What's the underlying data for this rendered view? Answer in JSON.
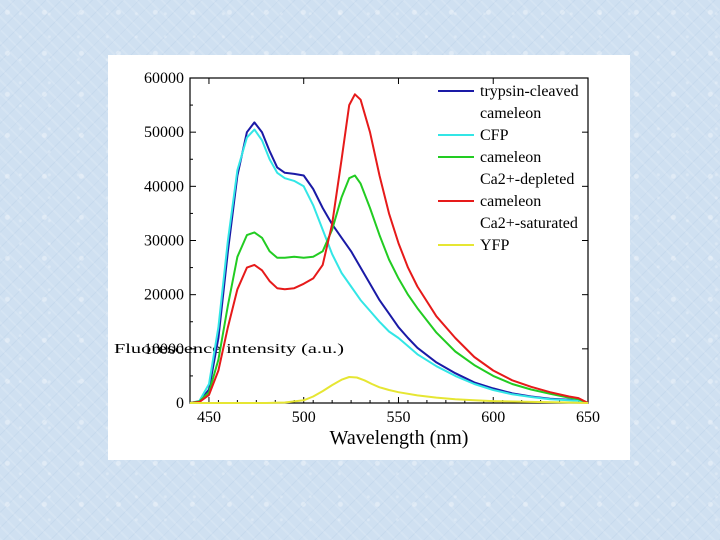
{
  "chart_data": {
    "type": "line",
    "title": "",
    "xlabel": "Wavelength (nm)",
    "ylabel": "Fluorescence intensity (a.u.)",
    "xlim": [
      440,
      650
    ],
    "ylim": [
      0,
      60000
    ],
    "x_ticks": [
      450,
      500,
      550,
      600,
      650
    ],
    "y_ticks": [
      0,
      10000,
      20000,
      30000,
      40000,
      50000,
      60000
    ],
    "grid": false,
    "legend_position": "top-right",
    "legend": [
      {
        "series": 0,
        "lines": [
          "trypsin-cleaved",
          "cameleon"
        ]
      },
      {
        "series": 1,
        "lines": [
          "CFP"
        ]
      },
      {
        "series": 2,
        "lines": [
          "cameleon",
          "Ca2+-depleted"
        ]
      },
      {
        "series": 3,
        "lines": [
          "cameleon",
          "Ca2+-saturated"
        ]
      },
      {
        "series": 4,
        "lines": [
          "YFP"
        ]
      }
    ],
    "series": [
      {
        "name": "trypsin-cleaved cameleon",
        "color": "#1a1aa6",
        "points": [
          [
            440,
            0
          ],
          [
            445,
            300
          ],
          [
            450,
            2500
          ],
          [
            455,
            12000
          ],
          [
            460,
            28000
          ],
          [
            465,
            42000
          ],
          [
            470,
            50000
          ],
          [
            474,
            51800
          ],
          [
            478,
            50000
          ],
          [
            482,
            46500
          ],
          [
            486,
            43500
          ],
          [
            490,
            42500
          ],
          [
            495,
            42300
          ],
          [
            500,
            42000
          ],
          [
            505,
            39500
          ],
          [
            510,
            36000
          ],
          [
            515,
            33000
          ],
          [
            520,
            30500
          ],
          [
            525,
            28000
          ],
          [
            530,
            25000
          ],
          [
            535,
            22000
          ],
          [
            540,
            19000
          ],
          [
            545,
            16500
          ],
          [
            550,
            14000
          ],
          [
            555,
            12000
          ],
          [
            560,
            10200
          ],
          [
            570,
            7500
          ],
          [
            580,
            5500
          ],
          [
            590,
            3800
          ],
          [
            600,
            2700
          ],
          [
            610,
            1800
          ],
          [
            620,
            1200
          ],
          [
            630,
            800
          ],
          [
            640,
            600
          ],
          [
            645,
            500
          ],
          [
            650,
            0
          ]
        ]
      },
      {
        "name": "CFP",
        "color": "#33e6e6",
        "points": [
          [
            440,
            0
          ],
          [
            445,
            400
          ],
          [
            450,
            3500
          ],
          [
            455,
            14000
          ],
          [
            460,
            30000
          ],
          [
            465,
            43000
          ],
          [
            470,
            49000
          ],
          [
            474,
            50500
          ],
          [
            478,
            48500
          ],
          [
            482,
            45000
          ],
          [
            486,
            42500
          ],
          [
            490,
            41500
          ],
          [
            495,
            41000
          ],
          [
            500,
            40000
          ],
          [
            505,
            36500
          ],
          [
            510,
            32000
          ],
          [
            515,
            27500
          ],
          [
            520,
            24000
          ],
          [
            525,
            21500
          ],
          [
            530,
            19000
          ],
          [
            535,
            17000
          ],
          [
            540,
            15000
          ],
          [
            545,
            13200
          ],
          [
            550,
            12000
          ],
          [
            555,
            10500
          ],
          [
            560,
            9000
          ],
          [
            570,
            6800
          ],
          [
            580,
            5000
          ],
          [
            590,
            3500
          ],
          [
            600,
            2400
          ],
          [
            610,
            1600
          ],
          [
            620,
            1100
          ],
          [
            630,
            700
          ],
          [
            640,
            500
          ],
          [
            645,
            400
          ],
          [
            650,
            0
          ]
        ]
      },
      {
        "name": "cameleon Ca2+-depleted",
        "color": "#22cc22",
        "points": [
          [
            440,
            0
          ],
          [
            445,
            300
          ],
          [
            450,
            2000
          ],
          [
            455,
            8000
          ],
          [
            460,
            18000
          ],
          [
            465,
            27000
          ],
          [
            470,
            31000
          ],
          [
            474,
            31500
          ],
          [
            478,
            30500
          ],
          [
            482,
            28000
          ],
          [
            486,
            26800
          ],
          [
            490,
            26800
          ],
          [
            495,
            27000
          ],
          [
            500,
            26800
          ],
          [
            505,
            27000
          ],
          [
            510,
            28000
          ],
          [
            515,
            32000
          ],
          [
            520,
            38000
          ],
          [
            524,
            41500
          ],
          [
            527,
            42000
          ],
          [
            530,
            40500
          ],
          [
            535,
            36000
          ],
          [
            540,
            31000
          ],
          [
            545,
            26500
          ],
          [
            550,
            23000
          ],
          [
            555,
            20000
          ],
          [
            560,
            17500
          ],
          [
            570,
            13000
          ],
          [
            580,
            9500
          ],
          [
            590,
            7000
          ],
          [
            600,
            5000
          ],
          [
            610,
            3500
          ],
          [
            620,
            2500
          ],
          [
            630,
            1700
          ],
          [
            640,
            1000
          ],
          [
            645,
            700
          ],
          [
            650,
            0
          ]
        ]
      },
      {
        "name": "cameleon Ca2+-saturated",
        "color": "#e61a1a",
        "points": [
          [
            440,
            0
          ],
          [
            445,
            200
          ],
          [
            450,
            1500
          ],
          [
            455,
            6000
          ],
          [
            460,
            14000
          ],
          [
            465,
            21000
          ],
          [
            470,
            25000
          ],
          [
            474,
            25500
          ],
          [
            478,
            24500
          ],
          [
            482,
            22500
          ],
          [
            486,
            21200
          ],
          [
            490,
            21000
          ],
          [
            495,
            21200
          ],
          [
            500,
            22000
          ],
          [
            505,
            23000
          ],
          [
            510,
            25500
          ],
          [
            515,
            33000
          ],
          [
            520,
            45000
          ],
          [
            524,
            55000
          ],
          [
            527,
            57000
          ],
          [
            530,
            56000
          ],
          [
            535,
            50000
          ],
          [
            540,
            42000
          ],
          [
            545,
            35000
          ],
          [
            550,
            29500
          ],
          [
            555,
            25000
          ],
          [
            560,
            21500
          ],
          [
            570,
            16000
          ],
          [
            580,
            12000
          ],
          [
            590,
            8500
          ],
          [
            600,
            6000
          ],
          [
            610,
            4200
          ],
          [
            620,
            3000
          ],
          [
            630,
            2000
          ],
          [
            640,
            1200
          ],
          [
            645,
            900
          ],
          [
            650,
            0
          ]
        ]
      },
      {
        "name": "YFP",
        "color": "#e6e633",
        "points": [
          [
            440,
            0
          ],
          [
            480,
            0
          ],
          [
            490,
            100
          ],
          [
            500,
            500
          ],
          [
            505,
            1200
          ],
          [
            510,
            2200
          ],
          [
            515,
            3300
          ],
          [
            520,
            4300
          ],
          [
            524,
            4800
          ],
          [
            528,
            4700
          ],
          [
            532,
            4200
          ],
          [
            536,
            3500
          ],
          [
            540,
            2900
          ],
          [
            545,
            2400
          ],
          [
            550,
            2000
          ],
          [
            560,
            1400
          ],
          [
            570,
            1000
          ],
          [
            580,
            700
          ],
          [
            590,
            500
          ],
          [
            600,
            350
          ],
          [
            620,
            200
          ],
          [
            640,
            100
          ],
          [
            650,
            0
          ]
        ]
      }
    ]
  }
}
